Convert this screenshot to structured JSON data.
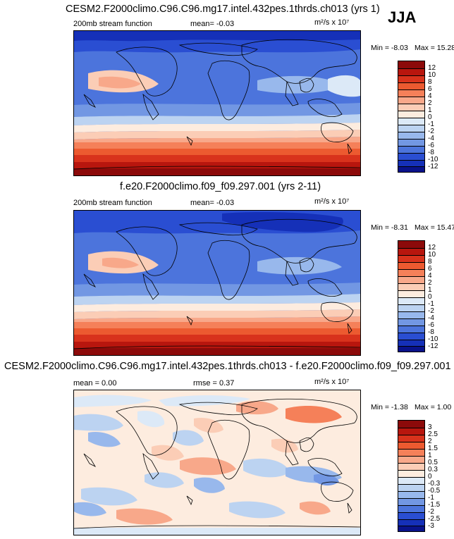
{
  "season": "JJA",
  "units": "m²/s x 10⁷",
  "panels": [
    {
      "title": "CESM2.F2000climo.C96.C96.mg17.intel.432pes.1thrds.ch013 (yrs 1)",
      "left_label": "200mb stream function",
      "mid_label": "mean=  -0.03",
      "units": "m²/s x 10⁷",
      "min_text": "Min =  -8.03",
      "max_text": "Max =  15.28",
      "colorbar_labels": [
        "12",
        "10",
        "8",
        "6",
        "4",
        "2",
        "1",
        "0",
        "-1",
        "-2",
        "-4",
        "-6",
        "-8",
        "-10",
        "-12"
      ]
    },
    {
      "title": "f.e20.F2000climo.f09_f09.297.001 (yrs 2-11)",
      "left_label": "200mb stream function",
      "mid_label": "mean=  -0.03",
      "units": "m²/s x 10⁷",
      "min_text": "Min =  -8.31",
      "max_text": "Max =  15.47",
      "colorbar_labels": [
        "12",
        "10",
        "8",
        "6",
        "4",
        "2",
        "1",
        "0",
        "-1",
        "-2",
        "-4",
        "-6",
        "-8",
        "-10",
        "-12"
      ]
    },
    {
      "title": "CESM2.F2000climo.C96.C96.mg17.intel.432pes.1thrds.ch013 - f.e20.F2000climo.f09_f09.297.001",
      "left_label": "mean =   0.00",
      "mid_label": "rmse =   0.37",
      "units": "m²/s x 10⁷",
      "min_text": "Min =  -1.38",
      "max_text": "Max =   1.00",
      "colorbar_labels": [
        "3",
        "2.5",
        "2",
        "1.5",
        "1",
        "0.5",
        "0.3",
        "0",
        "-0.3",
        "-0.5",
        "-1",
        "-1.5",
        "-2",
        "-2.5",
        "-3"
      ]
    }
  ],
  "colors": {
    "scale": [
      "#8c0a0a",
      "#b8160e",
      "#d8321c",
      "#ec5a30",
      "#f58059",
      "#f8a88a",
      "#fbcdb6",
      "#fdecdf",
      "#dce9f7",
      "#bcd3f1",
      "#98b8ec",
      "#7297e3",
      "#4c74dc",
      "#2a4ed2",
      "#1530b8",
      "#09128a"
    ]
  }
}
